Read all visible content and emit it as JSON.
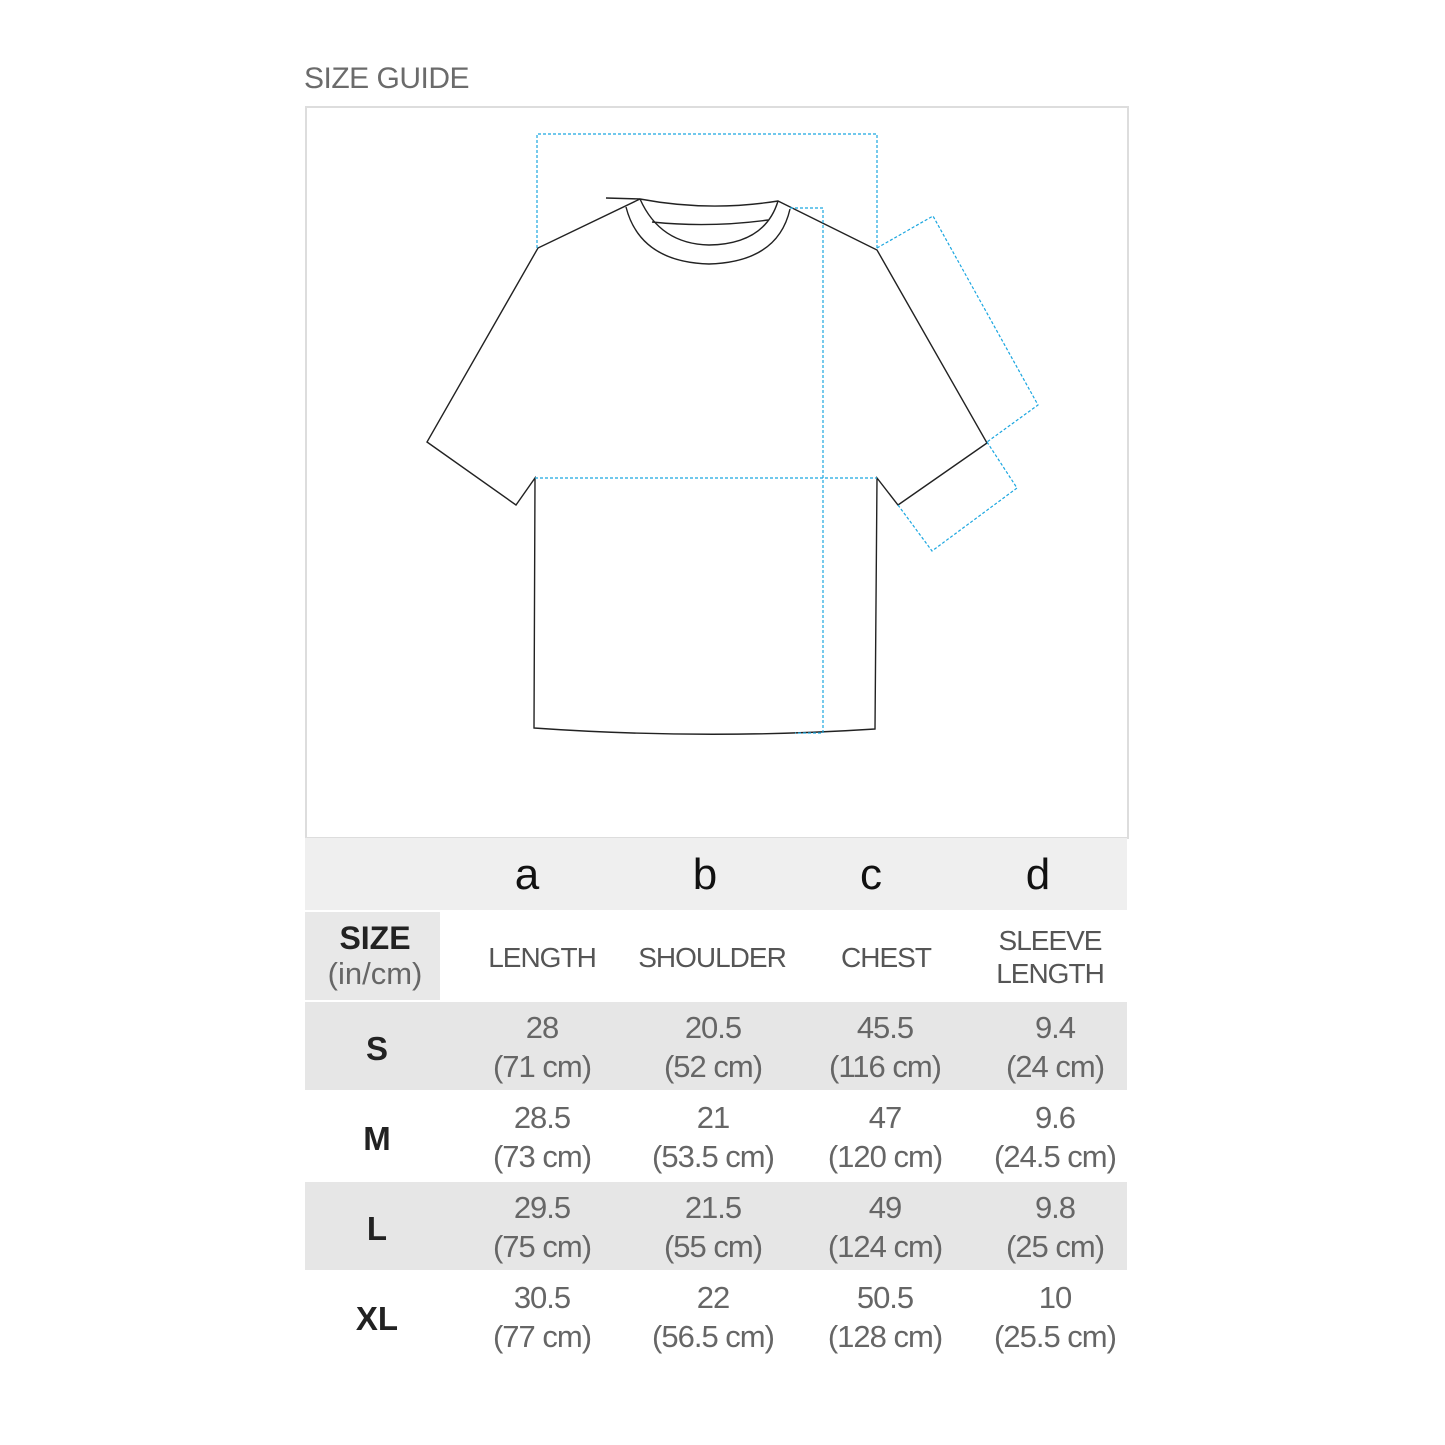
{
  "title": "SIZE GUIDE",
  "colors": {
    "measure_lines": "#1aa6e0",
    "outline": "#222222",
    "row_shade": "#e6e6e6"
  },
  "columns": [
    {
      "letter": "a",
      "label": "LENGTH"
    },
    {
      "letter": "b",
      "label": "SHOULDER"
    },
    {
      "letter": "c",
      "label": "CHEST"
    },
    {
      "letter": "d",
      "label_line1": "SLEEVE",
      "label_line2": "LENGTH"
    }
  ],
  "size_header": {
    "line1": "SIZE",
    "line2": "(in/cm)"
  },
  "rows": [
    {
      "size": "S",
      "values": [
        {
          "in": "28",
          "cm": "(71 cm)"
        },
        {
          "in": "20.5",
          "cm": "(52 cm)"
        },
        {
          "in": "45.5",
          "cm": "(116 cm)"
        },
        {
          "in": "9.4",
          "cm": "(24 cm)"
        }
      ]
    },
    {
      "size": "M",
      "values": [
        {
          "in": "28.5",
          "cm": "(73 cm)"
        },
        {
          "in": "21",
          "cm": "(53.5 cm)"
        },
        {
          "in": "47",
          "cm": "(120 cm)"
        },
        {
          "in": "9.6",
          "cm": "(24.5 cm)"
        }
      ]
    },
    {
      "size": "L",
      "values": [
        {
          "in": "29.5",
          "cm": "(75 cm)"
        },
        {
          "in": "21.5",
          "cm": "(55 cm)"
        },
        {
          "in": "49",
          "cm": "(124 cm)"
        },
        {
          "in": "9.8",
          "cm": "(25 cm)"
        }
      ]
    },
    {
      "size": "XL",
      "values": [
        {
          "in": "30.5",
          "cm": "(77 cm)"
        },
        {
          "in": "22",
          "cm": "(56.5 cm)"
        },
        {
          "in": "50.5",
          "cm": "(128 cm)"
        },
        {
          "in": "10",
          "cm": "(25.5 cm)"
        }
      ]
    }
  ]
}
